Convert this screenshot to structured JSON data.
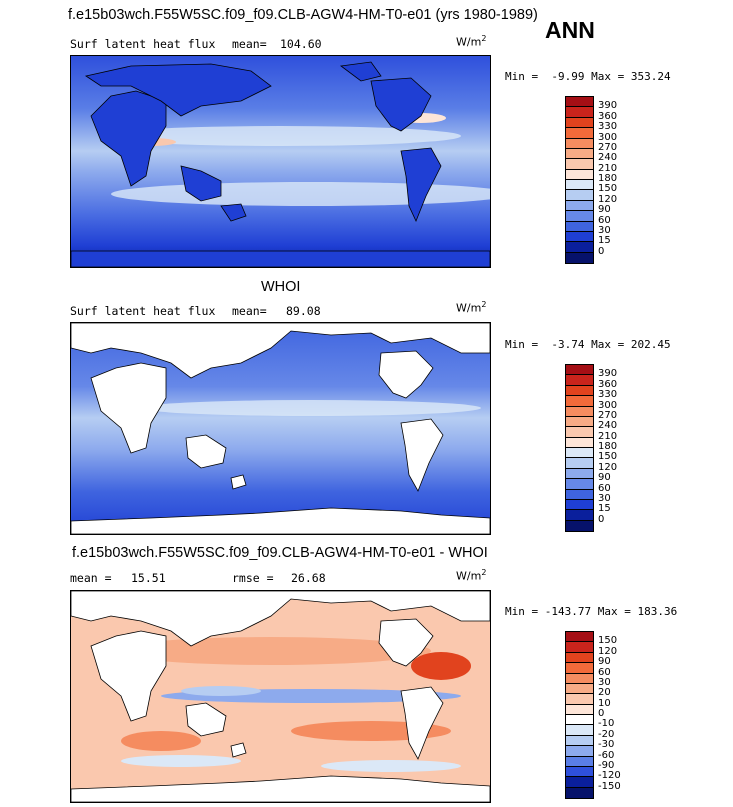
{
  "header": {
    "title": "f.e15b03wch.F55W5SC.f09_f09.CLB-AGW4-HM-T0-e01 (yrs 1980-1989)",
    "season": "ANN"
  },
  "panels": [
    {
      "left_label": "Surf latent heat flux",
      "stat_label": "mean=",
      "stat_value": "104.60",
      "unit": "W/m",
      "unit_exp": "2",
      "min_label": "Min =",
      "min_value": "-9.99",
      "max_label": "Max =",
      "max_value": "353.24",
      "colorbar_labels": [
        "390",
        "360",
        "330",
        "300",
        "270",
        "240",
        "210",
        "180",
        "150",
        "120",
        "90",
        "60",
        "30",
        "15",
        "0"
      ],
      "colorbar_colors": [
        "#a50f15",
        "#c9241c",
        "#e1431e",
        "#f26a3a",
        "#f58c60",
        "#f7ab86",
        "#fac8ae",
        "#fde5d8",
        "#dbe8f7",
        "#b6cdf2",
        "#8daaed",
        "#6688e8",
        "#3f64df",
        "#1f3fd4",
        "#0a1f9c",
        "#06126b"
      ]
    },
    {
      "center_label": "WHOI",
      "left_label": "Surf latent heat flux",
      "stat_label": "mean=",
      "stat_value": "89.08",
      "unit": "W/m",
      "unit_exp": "2",
      "min_label": "Min =",
      "min_value": "-3.74",
      "max_label": "Max =",
      "max_value": "202.45",
      "colorbar_labels": [
        "390",
        "360",
        "330",
        "300",
        "270",
        "240",
        "210",
        "180",
        "150",
        "120",
        "90",
        "60",
        "30",
        "15",
        "0"
      ],
      "colorbar_colors": [
        "#a50f15",
        "#c9241c",
        "#e1431e",
        "#f26a3a",
        "#f58c60",
        "#f7ab86",
        "#fac8ae",
        "#fde5d8",
        "#dbe8f7",
        "#b6cdf2",
        "#8daaed",
        "#6688e8",
        "#3f64df",
        "#1f3fd4",
        "#0a1f9c",
        "#06126b"
      ]
    },
    {
      "center_label": "f.e15b03wch.F55W5SC.f09_f09.CLB-AGW4-HM-T0-e01 - WHOI",
      "stat_label": "mean =",
      "stat_value": "15.51",
      "rmse_label": "rmse =",
      "rmse_value": "26.68",
      "unit": "W/m",
      "unit_exp": "2",
      "min_label": "Min =",
      "min_value": "-143.77",
      "max_label": "Max =",
      "max_value": "183.36",
      "colorbar_labels": [
        "150",
        "120",
        "90",
        "60",
        "30",
        "20",
        "10",
        "0",
        "-10",
        "-20",
        "-30",
        "-60",
        "-90",
        "-120",
        "-150"
      ],
      "colorbar_colors": [
        "#a50f15",
        "#c9241c",
        "#e1431e",
        "#f26a3a",
        "#f58c60",
        "#f7ab86",
        "#fac8ae",
        "#fde5d8",
        "#ffffff",
        "#dbe8f7",
        "#b6cdf2",
        "#8daaed",
        "#5a7ee6",
        "#2f50dc",
        "#0a1f9c",
        "#06126b"
      ]
    }
  ]
}
